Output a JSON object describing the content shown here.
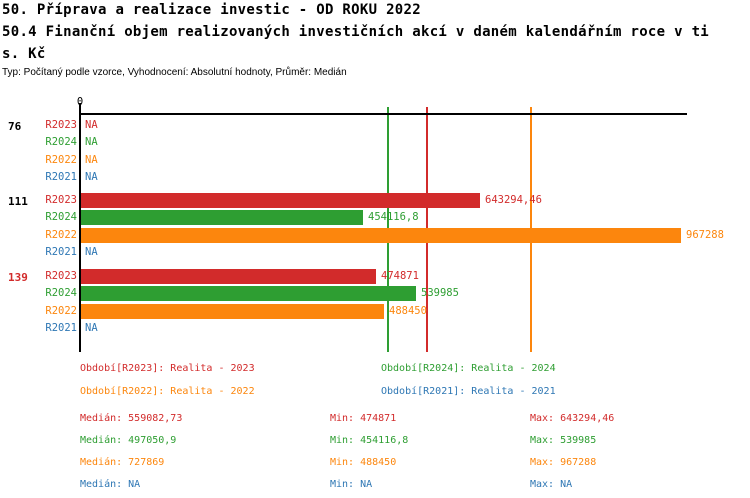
{
  "title": {
    "line1": "50. Příprava a realizace investic - OD ROKU 2022",
    "line2": "50.4 Finanční objem realizovaných investičních akcí v daném kalendářním roce v ti",
    "line3": "s. Kč",
    "meta": "Typ: Počítaný podle vzorce, Vyhodnocení: Absolutní hodnoty, Průměr: Medián"
  },
  "colors": {
    "red": "#d22b2b",
    "green": "#2e9e32",
    "orange": "#fc860d",
    "blue": "#2e77b4",
    "axis": "#000000",
    "highlight_group_label": "#d22b2b",
    "normal_group_label": "#000000"
  },
  "chart_data": {
    "type": "bar",
    "orientation": "horizontal",
    "title": "50.4 Finanční objem realizovaných investičních akcí v daném kalendářním roce v tis. Kč",
    "x_axis": {
      "zero_label": "0",
      "max_value": 967288,
      "grid": false
    },
    "series_colors": {
      "R2023": "#d22b2b",
      "R2024": "#2e9e32",
      "R2022": "#fc860d",
      "R2021": "#2e77b4"
    },
    "groups": [
      {
        "label": "76",
        "highlight": false,
        "rows": [
          {
            "series": "R2023",
            "value": null,
            "display": "NA"
          },
          {
            "series": "R2024",
            "value": null,
            "display": "NA"
          },
          {
            "series": "R2022",
            "value": null,
            "display": "NA"
          },
          {
            "series": "R2021",
            "value": null,
            "display": "NA"
          }
        ]
      },
      {
        "label": "111",
        "highlight": false,
        "rows": [
          {
            "series": "R2023",
            "value": 643294.46,
            "display": "643294,46"
          },
          {
            "series": "R2024",
            "value": 454116.8,
            "display": "454116,8"
          },
          {
            "series": "R2022",
            "value": 967288,
            "display": "967288"
          },
          {
            "series": "R2021",
            "value": null,
            "display": "NA"
          }
        ]
      },
      {
        "label": "139",
        "highlight": true,
        "rows": [
          {
            "series": "R2023",
            "value": 474871,
            "display": "474871"
          },
          {
            "series": "R2024",
            "value": 539985,
            "display": "539985"
          },
          {
            "series": "R2022",
            "value": 488450,
            "display": "488450"
          },
          {
            "series": "R2021",
            "value": null,
            "display": "NA"
          }
        ]
      }
    ],
    "median_lines": [
      {
        "series": "R2024",
        "value": 497050.9
      },
      {
        "series": "R2023",
        "value": 559082.73
      },
      {
        "series": "R2022",
        "value": 727869
      }
    ]
  },
  "legend": {
    "items": [
      {
        "series": "R2023",
        "label": "Období[R2023]: Realita - 2023",
        "col": 0,
        "row": 0
      },
      {
        "series": "R2024",
        "label": "Období[R2024]: Realita - 2024",
        "col": 1,
        "row": 0
      },
      {
        "series": "R2022",
        "label": "Období[R2022]: Realita - 2022",
        "col": 0,
        "row": 1
      },
      {
        "series": "R2021",
        "label": "Období[R2021]: Realita - 2021",
        "col": 1,
        "row": 1
      }
    ]
  },
  "stats": {
    "rows": [
      {
        "series": "R2023",
        "median": "Medián: 559082,73",
        "min": "Min: 474871",
        "max": "Max: 643294,46"
      },
      {
        "series": "R2024",
        "median": "Medián: 497050,9",
        "min": "Min: 454116,8",
        "max": "Max: 539985"
      },
      {
        "series": "R2022",
        "median": "Medián: 727869",
        "min": "Min: 488450",
        "max": "Max: 967288"
      },
      {
        "series": "R2021",
        "median": "Medián: NA",
        "min": "Min: NA",
        "max": "Max: NA"
      }
    ]
  }
}
